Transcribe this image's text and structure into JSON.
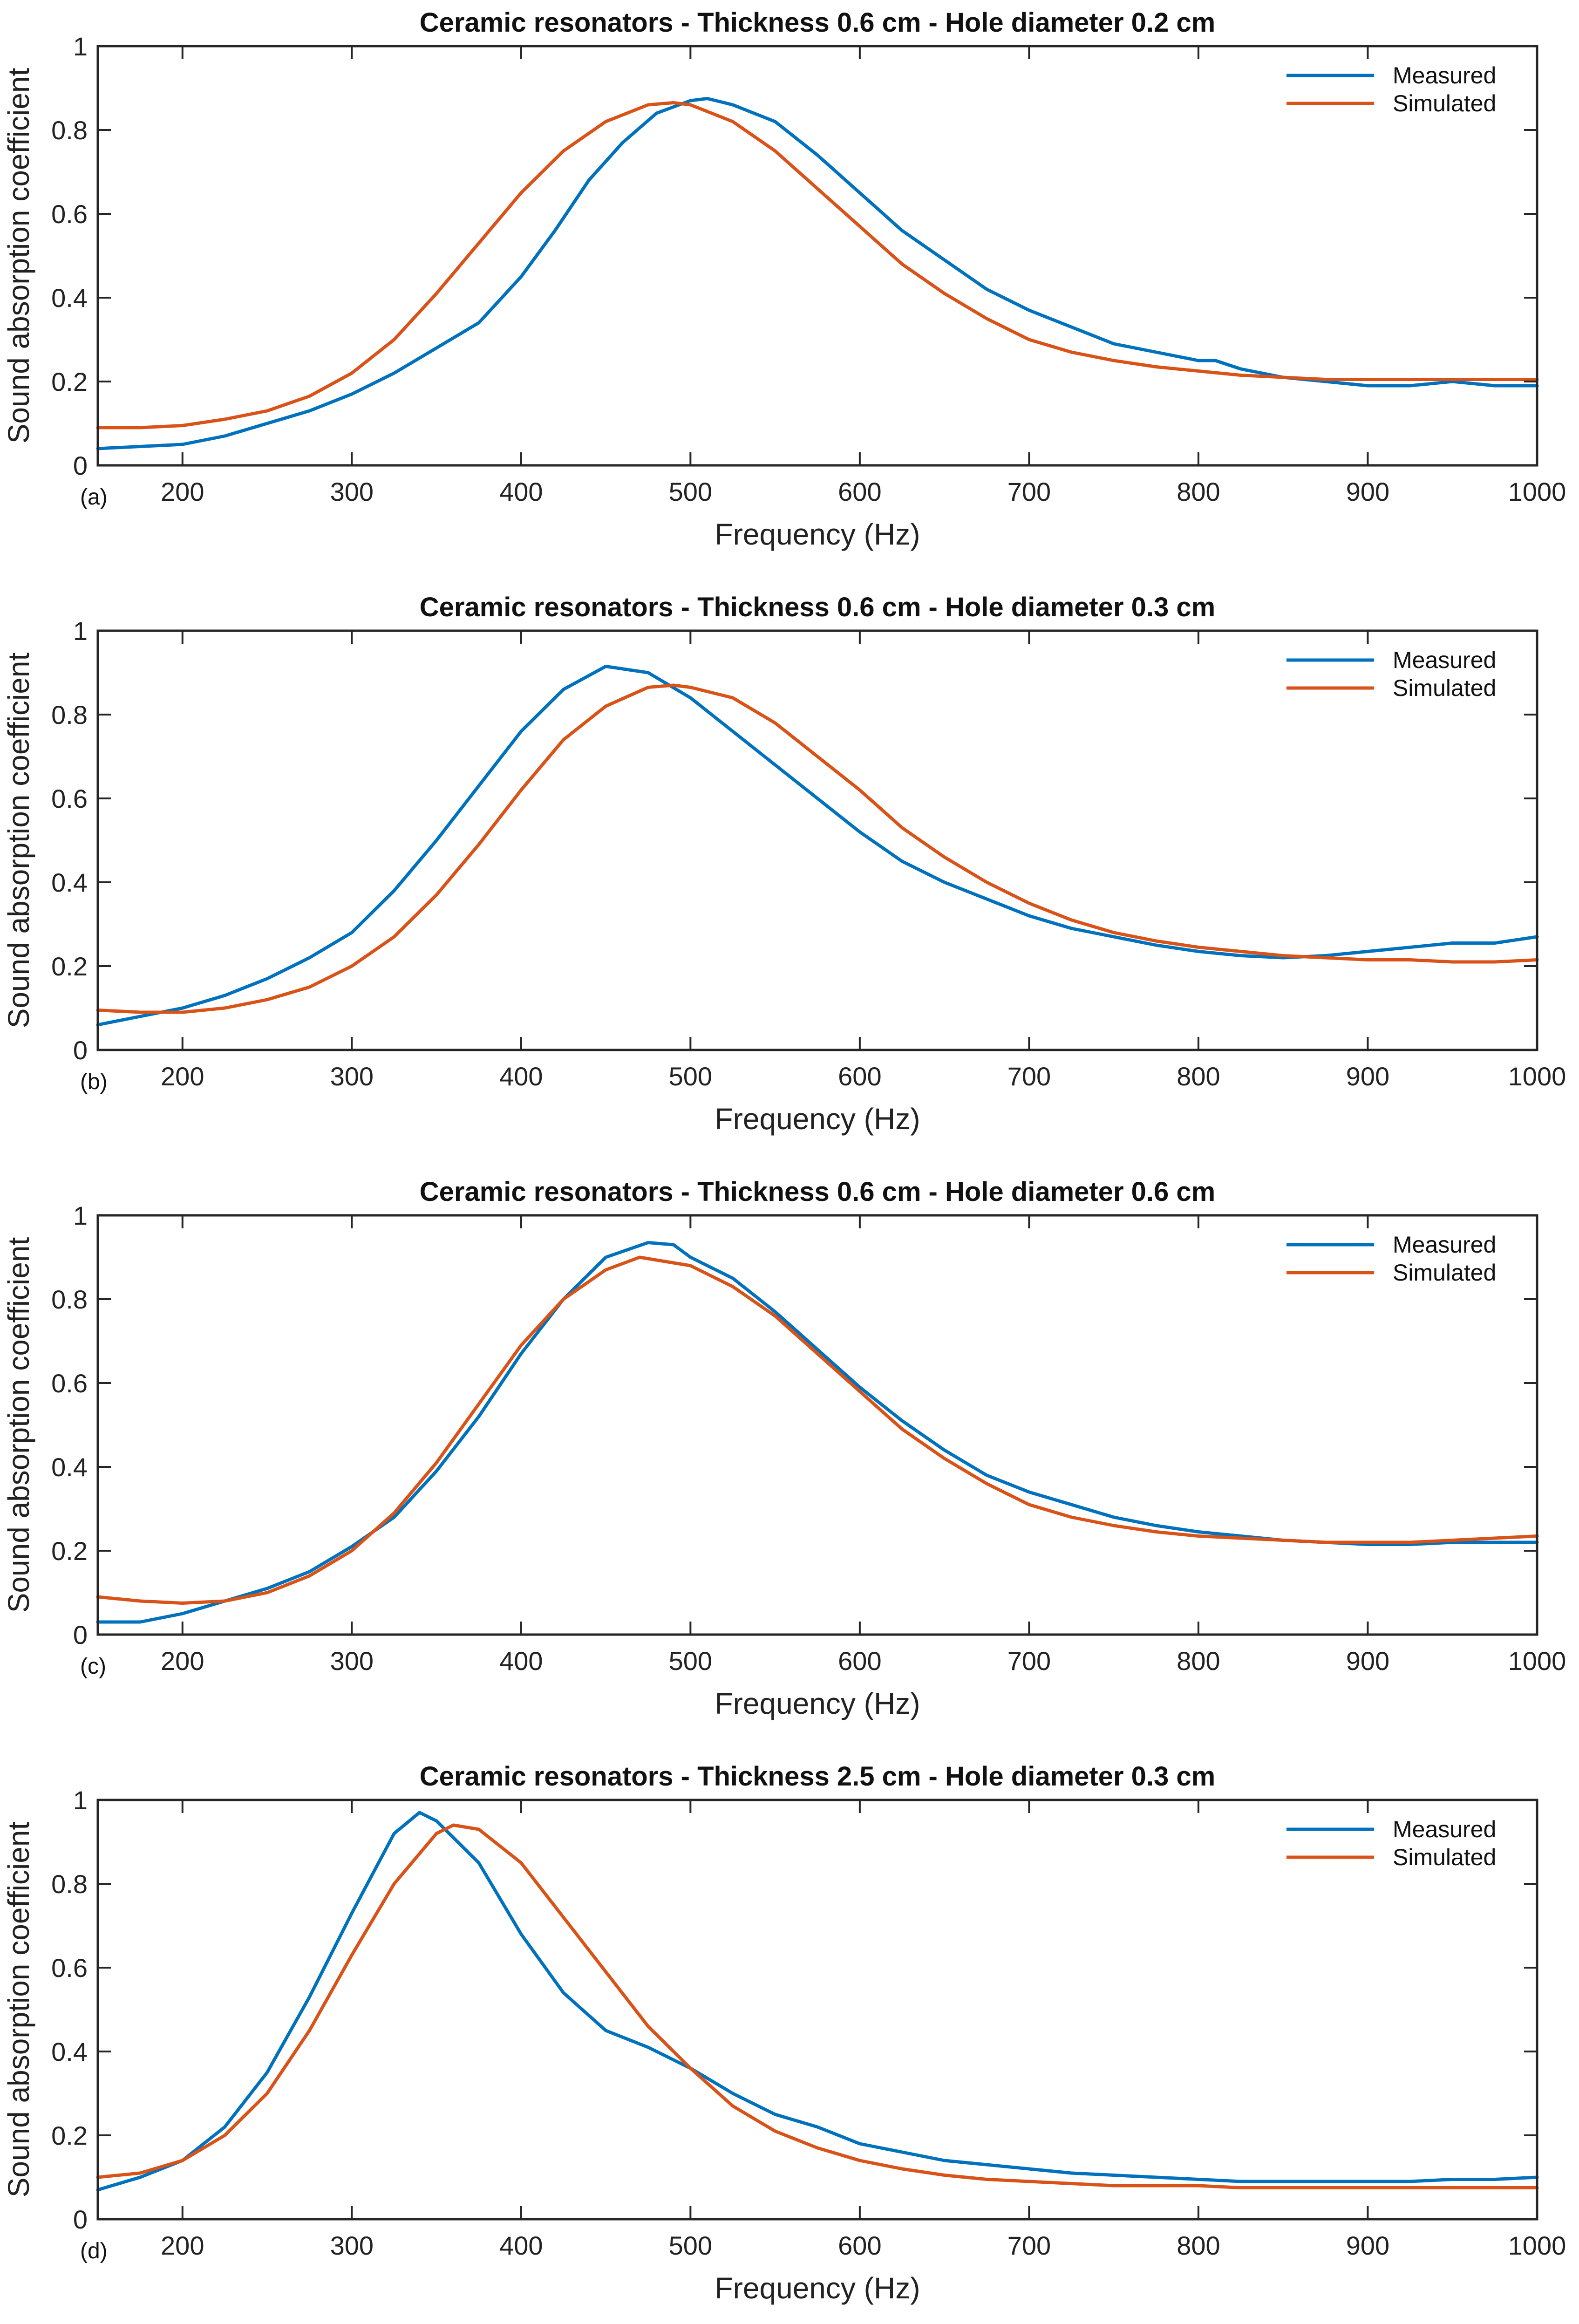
{
  "chart_data": [
    {
      "type": "line",
      "panel_label": "(a)",
      "title": "Ceramic resonators - Thickness 0.6 cm - Hole diameter 0.2 cm",
      "xlabel": "Frequency (Hz)",
      "ylabel": "Sound absorption coefficient",
      "xlim": [
        150,
        1000
      ],
      "ylim": [
        0,
        1
      ],
      "xticks": [
        200,
        300,
        400,
        500,
        600,
        700,
        800,
        900,
        1000
      ],
      "xtick_labels": [
        "200",
        "300",
        "400",
        "500",
        "600",
        "700",
        "800",
        "900",
        "1000"
      ],
      "yticks": [
        0,
        0.2,
        0.4,
        0.6,
        0.8,
        1
      ],
      "ytick_labels": [
        "0",
        "0.2",
        "0.4",
        "0.6",
        "0.8",
        "1"
      ],
      "legend": "top-right",
      "grid": false,
      "series": [
        {
          "name": "Measured",
          "color": "#0072BD",
          "x": [
            150,
            175,
            200,
            225,
            250,
            275,
            300,
            325,
            350,
            375,
            400,
            420,
            440,
            460,
            480,
            500,
            510,
            525,
            550,
            575,
            600,
            625,
            650,
            675,
            700,
            725,
            750,
            775,
            800,
            810,
            825,
            850,
            875,
            900,
            925,
            950,
            975,
            1000
          ],
          "y": [
            0.04,
            0.045,
            0.05,
            0.07,
            0.1,
            0.13,
            0.17,
            0.22,
            0.28,
            0.34,
            0.45,
            0.56,
            0.68,
            0.77,
            0.84,
            0.87,
            0.875,
            0.86,
            0.82,
            0.74,
            0.65,
            0.56,
            0.49,
            0.42,
            0.37,
            0.33,
            0.29,
            0.27,
            0.25,
            0.25,
            0.23,
            0.21,
            0.2,
            0.19,
            0.19,
            0.2,
            0.19,
            0.19
          ]
        },
        {
          "name": "Simulated",
          "color": "#D95319",
          "x": [
            150,
            175,
            200,
            225,
            250,
            275,
            300,
            325,
            350,
            375,
            400,
            425,
            450,
            475,
            490,
            500,
            525,
            550,
            575,
            600,
            625,
            650,
            675,
            700,
            725,
            750,
            775,
            800,
            825,
            850,
            875,
            900,
            925,
            950,
            975,
            1000
          ],
          "y": [
            0.09,
            0.09,
            0.095,
            0.11,
            0.13,
            0.165,
            0.22,
            0.3,
            0.41,
            0.53,
            0.65,
            0.75,
            0.82,
            0.86,
            0.865,
            0.86,
            0.82,
            0.75,
            0.66,
            0.57,
            0.48,
            0.41,
            0.35,
            0.3,
            0.27,
            0.25,
            0.235,
            0.225,
            0.215,
            0.21,
            0.205,
            0.205,
            0.205,
            0.205,
            0.205,
            0.205
          ]
        }
      ]
    },
    {
      "type": "line",
      "panel_label": "(b)",
      "title": "Ceramic resonators - Thickness 0.6 cm - Hole diameter 0.3 cm",
      "xlabel": "Frequency (Hz)",
      "ylabel": "Sound absorption coefficient",
      "xlim": [
        150,
        1000
      ],
      "ylim": [
        0,
        1
      ],
      "xticks": [
        200,
        300,
        400,
        500,
        600,
        700,
        800,
        900,
        1000
      ],
      "xtick_labels": [
        "200",
        "300",
        "400",
        "500",
        "600",
        "700",
        "800",
        "900",
        "1000"
      ],
      "yticks": [
        0,
        0.2,
        0.4,
        0.6,
        0.8,
        1
      ],
      "ytick_labels": [
        "0",
        "0.2",
        "0.4",
        "0.6",
        "0.8",
        "1"
      ],
      "legend": "top-right",
      "grid": false,
      "series": [
        {
          "name": "Measured",
          "color": "#0072BD",
          "x": [
            150,
            175,
            200,
            225,
            250,
            275,
            300,
            325,
            350,
            375,
            400,
            425,
            450,
            475,
            500,
            525,
            550,
            575,
            600,
            625,
            650,
            675,
            700,
            725,
            750,
            775,
            800,
            825,
            850,
            875,
            900,
            925,
            950,
            975,
            1000
          ],
          "y": [
            0.06,
            0.08,
            0.1,
            0.13,
            0.17,
            0.22,
            0.28,
            0.38,
            0.5,
            0.63,
            0.76,
            0.86,
            0.915,
            0.9,
            0.84,
            0.76,
            0.68,
            0.6,
            0.52,
            0.45,
            0.4,
            0.36,
            0.32,
            0.29,
            0.27,
            0.25,
            0.235,
            0.225,
            0.22,
            0.225,
            0.235,
            0.245,
            0.255,
            0.255,
            0.27
          ]
        },
        {
          "name": "Simulated",
          "color": "#D95319",
          "x": [
            150,
            175,
            200,
            225,
            250,
            275,
            300,
            325,
            350,
            375,
            400,
            425,
            450,
            475,
            490,
            500,
            525,
            550,
            575,
            600,
            625,
            650,
            675,
            700,
            725,
            750,
            775,
            800,
            825,
            850,
            875,
            900,
            925,
            950,
            975,
            1000
          ],
          "y": [
            0.095,
            0.09,
            0.09,
            0.1,
            0.12,
            0.15,
            0.2,
            0.27,
            0.37,
            0.49,
            0.62,
            0.74,
            0.82,
            0.865,
            0.87,
            0.865,
            0.84,
            0.78,
            0.7,
            0.62,
            0.53,
            0.46,
            0.4,
            0.35,
            0.31,
            0.28,
            0.26,
            0.245,
            0.235,
            0.225,
            0.22,
            0.215,
            0.215,
            0.21,
            0.21,
            0.215
          ]
        }
      ]
    },
    {
      "type": "line",
      "panel_label": "(c)",
      "title": "Ceramic resonators - Thickness 0.6 cm - Hole diameter 0.6 cm",
      "xlabel": "Frequency (Hz)",
      "ylabel": "Sound absorption coefficient",
      "xlim": [
        150,
        1000
      ],
      "ylim": [
        0,
        1
      ],
      "xticks": [
        200,
        300,
        400,
        500,
        600,
        700,
        800,
        900,
        1000
      ],
      "xtick_labels": [
        "200",
        "300",
        "400",
        "500",
        "600",
        "700",
        "800",
        "900",
        "1000"
      ],
      "yticks": [
        0,
        0.2,
        0.4,
        0.6,
        0.8,
        1
      ],
      "ytick_labels": [
        "0",
        "0.2",
        "0.4",
        "0.6",
        "0.8",
        "1"
      ],
      "legend": "top-right",
      "grid": false,
      "series": [
        {
          "name": "Measured",
          "color": "#0072BD",
          "x": [
            150,
            175,
            200,
            225,
            250,
            275,
            300,
            325,
            350,
            375,
            400,
            425,
            450,
            475,
            490,
            500,
            525,
            550,
            575,
            600,
            625,
            650,
            675,
            700,
            725,
            750,
            775,
            800,
            825,
            850,
            875,
            900,
            925,
            950,
            975,
            1000
          ],
          "y": [
            0.03,
            0.03,
            0.05,
            0.08,
            0.11,
            0.15,
            0.21,
            0.28,
            0.39,
            0.52,
            0.67,
            0.8,
            0.9,
            0.935,
            0.93,
            0.9,
            0.85,
            0.77,
            0.68,
            0.59,
            0.51,
            0.44,
            0.38,
            0.34,
            0.31,
            0.28,
            0.26,
            0.245,
            0.235,
            0.225,
            0.22,
            0.215,
            0.215,
            0.22,
            0.22,
            0.22
          ]
        },
        {
          "name": "Simulated",
          "color": "#D95319",
          "x": [
            150,
            175,
            200,
            225,
            250,
            275,
            300,
            325,
            350,
            375,
            400,
            425,
            450,
            470,
            500,
            525,
            550,
            575,
            600,
            625,
            650,
            675,
            700,
            725,
            750,
            775,
            800,
            825,
            850,
            875,
            900,
            925,
            950,
            975,
            1000
          ],
          "y": [
            0.09,
            0.08,
            0.075,
            0.08,
            0.1,
            0.14,
            0.2,
            0.29,
            0.41,
            0.55,
            0.69,
            0.8,
            0.87,
            0.9,
            0.88,
            0.83,
            0.76,
            0.67,
            0.58,
            0.49,
            0.42,
            0.36,
            0.31,
            0.28,
            0.26,
            0.245,
            0.235,
            0.23,
            0.225,
            0.22,
            0.22,
            0.22,
            0.225,
            0.23,
            0.235
          ]
        }
      ]
    },
    {
      "type": "line",
      "panel_label": "(d)",
      "title": "Ceramic resonators - Thickness 2.5 cm - Hole diameter 0.3 cm",
      "xlabel": "Frequency (Hz)",
      "ylabel": "Sound absorption coefficient",
      "xlim": [
        150,
        1000
      ],
      "ylim": [
        0,
        1
      ],
      "xticks": [
        200,
        300,
        400,
        500,
        600,
        700,
        800,
        900,
        1000
      ],
      "xtick_labels": [
        "200",
        "300",
        "400",
        "500",
        "600",
        "700",
        "800",
        "900",
        "1000"
      ],
      "yticks": [
        0,
        0.2,
        0.4,
        0.6,
        0.8,
        1
      ],
      "ytick_labels": [
        "0",
        "0.2",
        "0.4",
        "0.6",
        "0.8",
        "1"
      ],
      "legend": "top-right",
      "grid": false,
      "series": [
        {
          "name": "Measured",
          "color": "#0072BD",
          "x": [
            150,
            175,
            200,
            225,
            250,
            275,
            300,
            325,
            340,
            350,
            375,
            400,
            425,
            450,
            475,
            500,
            525,
            550,
            575,
            600,
            625,
            650,
            675,
            700,
            725,
            750,
            775,
            800,
            825,
            850,
            875,
            900,
            925,
            950,
            975,
            1000
          ],
          "y": [
            0.07,
            0.1,
            0.14,
            0.22,
            0.35,
            0.53,
            0.73,
            0.92,
            0.97,
            0.95,
            0.85,
            0.68,
            0.54,
            0.45,
            0.41,
            0.36,
            0.3,
            0.25,
            0.22,
            0.18,
            0.16,
            0.14,
            0.13,
            0.12,
            0.11,
            0.105,
            0.1,
            0.095,
            0.09,
            0.09,
            0.09,
            0.09,
            0.09,
            0.095,
            0.095,
            0.1
          ]
        },
        {
          "name": "Simulated",
          "color": "#D95319",
          "x": [
            150,
            175,
            200,
            225,
            250,
            275,
            300,
            325,
            350,
            360,
            375,
            400,
            425,
            450,
            475,
            500,
            525,
            550,
            575,
            600,
            625,
            650,
            675,
            700,
            725,
            750,
            775,
            800,
            825,
            850,
            875,
            900,
            925,
            950,
            975,
            1000
          ],
          "y": [
            0.1,
            0.11,
            0.14,
            0.2,
            0.3,
            0.45,
            0.63,
            0.8,
            0.92,
            0.94,
            0.93,
            0.85,
            0.72,
            0.59,
            0.46,
            0.36,
            0.27,
            0.21,
            0.17,
            0.14,
            0.12,
            0.105,
            0.095,
            0.09,
            0.085,
            0.08,
            0.08,
            0.08,
            0.075,
            0.075,
            0.075,
            0.075,
            0.075,
            0.075,
            0.075,
            0.075
          ]
        }
      ]
    }
  ]
}
